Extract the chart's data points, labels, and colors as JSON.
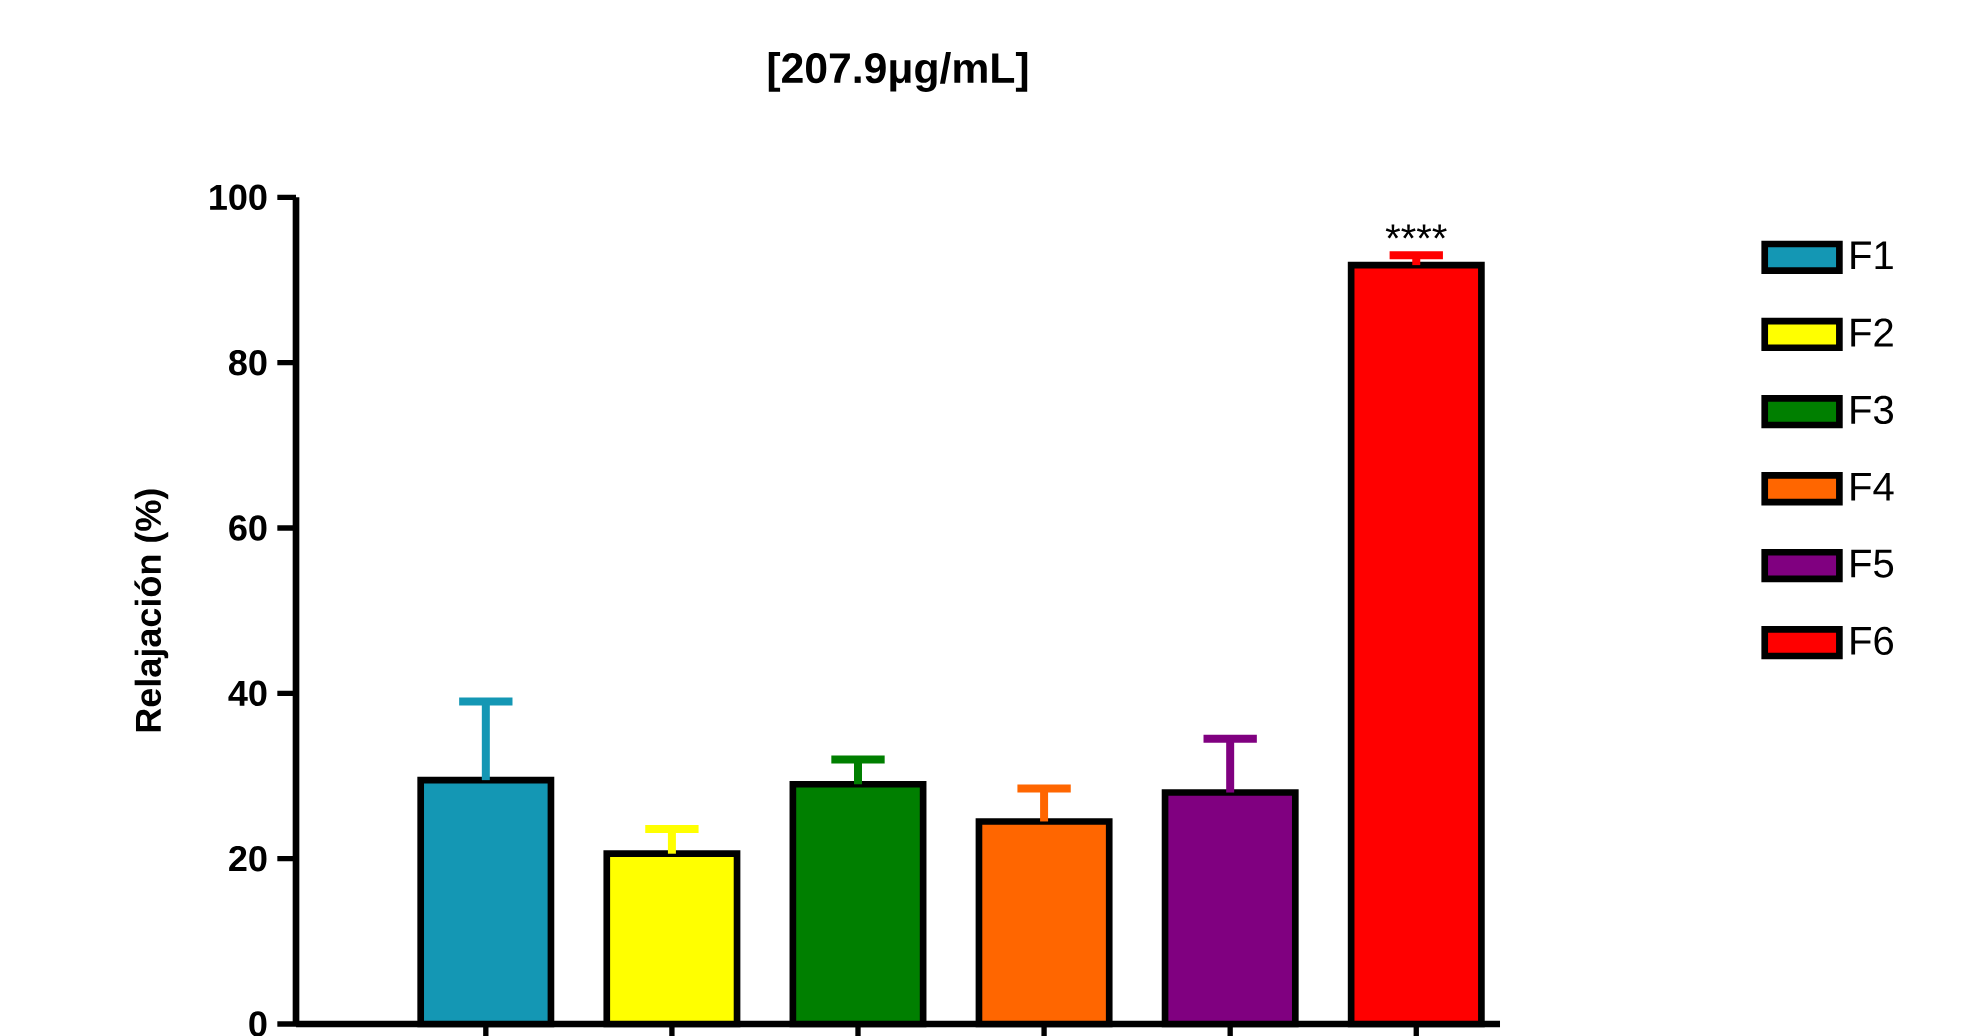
{
  "chart_data": {
    "type": "bar",
    "title": "[207.9μg/mL]",
    "ylabel": "Relajación (%)",
    "categories": [
      null,
      null,
      null,
      null,
      null,
      null
    ],
    "series": [
      {
        "name": "F1",
        "color": "#1497b4",
        "values": [
          29.5,
          null,
          null,
          null,
          null,
          null
        ],
        "errors": [
          9.5,
          null,
          null,
          null,
          null,
          null
        ]
      },
      {
        "name": "F2",
        "color": "#ffff00",
        "values": [
          null,
          20.6,
          null,
          null,
          null,
          null
        ],
        "errors": [
          null,
          3,
          null,
          null,
          null,
          null
        ]
      },
      {
        "name": "F3",
        "color": "#007f00",
        "values": [
          null,
          null,
          29,
          null,
          null,
          null
        ],
        "errors": [
          null,
          null,
          3,
          null,
          null,
          null
        ]
      },
      {
        "name": "F4",
        "color": "#ff6600",
        "values": [
          null,
          null,
          null,
          24.5,
          null,
          null
        ],
        "errors": [
          null,
          null,
          null,
          4,
          null,
          null
        ]
      },
      {
        "name": "F5",
        "color": "#800080",
        "values": [
          null,
          null,
          null,
          null,
          28,
          null
        ],
        "errors": [
          null,
          null,
          null,
          null,
          6.5,
          null
        ]
      },
      {
        "name": "F6",
        "color": "#ff0000",
        "values": [
          null,
          null,
          null,
          null,
          null,
          91.8
        ],
        "errors": [
          null,
          null,
          null,
          null,
          null,
          1.2
        ]
      }
    ],
    "ylim": [
      0,
      100
    ],
    "yticks": [
      0,
      20,
      40,
      60,
      80,
      100
    ],
    "annotations": [
      "****"
    ],
    "legend": "right"
  }
}
